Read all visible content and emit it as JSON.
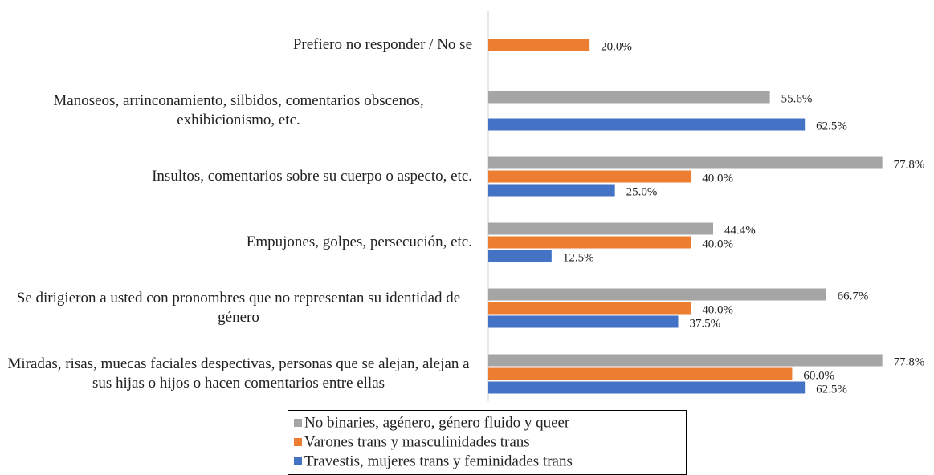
{
  "chart_data": {
    "type": "bar",
    "orientation": "horizontal",
    "categories": [
      "Prefiero no responder / No se",
      "Manoseos, arrinconamiento, silbidos, comentarios obscenos, exhibicionismo, etc.",
      "Insultos, comentarios sobre su cuerpo o aspecto, etc.",
      "Empujones, golpes, persecución, etc.",
      "Se dirigieron a usted con pronombres que no representan su identidad de género",
      "Miradas, risas, muecas faciales despectivas, personas que se alejan, alejan a sus hijas o hijos o hacen comentarios entre ellas"
    ],
    "series": [
      {
        "name": "No binaries, agénero, género fluido y queer",
        "color": "#a5a5a5",
        "values": [
          null,
          55.6,
          77.8,
          44.4,
          66.7,
          77.8
        ],
        "value_labels": [
          null,
          "55.6%",
          "77.8%",
          "44.4%",
          "66.7%",
          "77.8%"
        ]
      },
      {
        "name": "Varones trans y masculinidades trans",
        "color": "#ed7d31",
        "values": [
          20.0,
          null,
          40.0,
          40.0,
          40.0,
          60.0
        ],
        "value_labels": [
          "20.0%",
          null,
          "40.0%",
          "40.0%",
          "40.0%",
          "60.0%"
        ]
      },
      {
        "name": "Travestis, mujeres trans y feminidades trans",
        "color": "#4472c4",
        "values": [
          null,
          62.5,
          25.0,
          12.5,
          37.5,
          62.5
        ],
        "value_labels": [
          null,
          "62.5%",
          "25.0%",
          "12.5%",
          "37.5%",
          "62.5%"
        ]
      }
    ],
    "xlim": [
      0,
      88
    ],
    "legend": "bottom"
  }
}
